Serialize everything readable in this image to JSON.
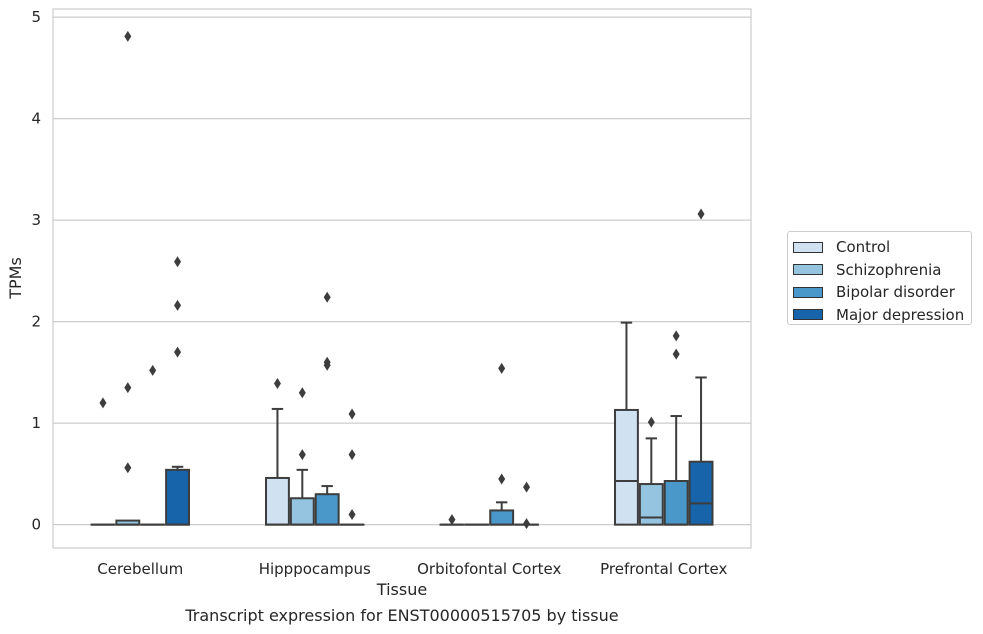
{
  "caption": "Transcript expression for ENST00000515705 by tissue",
  "chart_data": {
    "type": "box",
    "xlabel": "Tissue",
    "ylabel": "TPMs",
    "ylim": [
      -0.23,
      5.08
    ],
    "yticks": [
      0,
      1,
      2,
      3,
      4,
      5
    ],
    "grid": "horizontal",
    "legend_position": "right",
    "categories": [
      "Cerebellum",
      "Hipppocampus",
      "Orbitofontal Cortex",
      "Prefrontal Cortex"
    ],
    "series": [
      {
        "name": "Control",
        "color": "#d0e1f2",
        "boxes": [
          {
            "q1": 0,
            "median": 0,
            "q3": 0,
            "whisker_low": 0,
            "whisker_high": 0,
            "outliers": [
              1.2
            ]
          },
          {
            "q1": 0,
            "median": 0,
            "q3": 0.46,
            "whisker_low": 0,
            "whisker_high": 1.14,
            "outliers": [
              1.39
            ]
          },
          {
            "q1": 0,
            "median": 0,
            "q3": 0,
            "whisker_low": 0,
            "whisker_high": 0,
            "outliers": [
              0.05
            ]
          },
          {
            "q1": 0,
            "median": 0.43,
            "q3": 1.13,
            "whisker_low": 0,
            "whisker_high": 1.99,
            "outliers": []
          }
        ]
      },
      {
        "name": "Schizophrenia",
        "color": "#94c4df",
        "boxes": [
          {
            "q1": 0,
            "median": 0,
            "q3": 0.04,
            "whisker_low": 0,
            "whisker_high": 0.04,
            "outliers": [
              4.81,
              1.35,
              0.56
            ]
          },
          {
            "q1": 0,
            "median": 0,
            "q3": 0.26,
            "whisker_low": 0,
            "whisker_high": 0.54,
            "outliers": [
              1.3,
              0.69
            ]
          },
          {
            "q1": 0,
            "median": 0,
            "q3": 0,
            "whisker_low": 0,
            "whisker_high": 0,
            "outliers": []
          },
          {
            "q1": 0,
            "median": 0.07,
            "q3": 0.4,
            "whisker_low": 0,
            "whisker_high": 0.85,
            "outliers": [
              1.01
            ]
          }
        ]
      },
      {
        "name": "Bipolar disorder",
        "color": "#4a98c9",
        "boxes": [
          {
            "q1": 0,
            "median": 0,
            "q3": 0,
            "whisker_low": 0,
            "whisker_high": 0,
            "outliers": [
              1.52
            ]
          },
          {
            "q1": 0,
            "median": 0,
            "q3": 0.3,
            "whisker_low": 0,
            "whisker_high": 0.38,
            "outliers": [
              2.24,
              1.6,
              1.57
            ]
          },
          {
            "q1": 0,
            "median": 0,
            "q3": 0.14,
            "whisker_low": 0,
            "whisker_high": 0.22,
            "outliers": [
              1.54,
              0.45
            ]
          },
          {
            "q1": 0,
            "median": 0,
            "q3": 0.43,
            "whisker_low": 0,
            "whisker_high": 1.07,
            "outliers": [
              1.86,
              1.68
            ]
          }
        ]
      },
      {
        "name": "Major depression",
        "color": "#1764ab",
        "boxes": [
          {
            "q1": 0,
            "median": 0,
            "q3": 0.54,
            "whisker_low": 0,
            "whisker_high": 0.57,
            "outliers": [
              2.59,
              2.16,
              1.7
            ]
          },
          {
            "q1": 0,
            "median": 0,
            "q3": 0,
            "whisker_low": 0,
            "whisker_high": 0,
            "outliers": [
              1.09,
              0.69,
              0.1
            ]
          },
          {
            "q1": 0,
            "median": 0,
            "q3": 0,
            "whisker_low": 0,
            "whisker_high": 0,
            "outliers": [
              0.37,
              0.01
            ]
          },
          {
            "q1": 0,
            "median": 0.21,
            "q3": 0.62,
            "whisker_low": 0,
            "whisker_high": 1.45,
            "outliers": [
              3.06
            ]
          }
        ]
      }
    ]
  }
}
